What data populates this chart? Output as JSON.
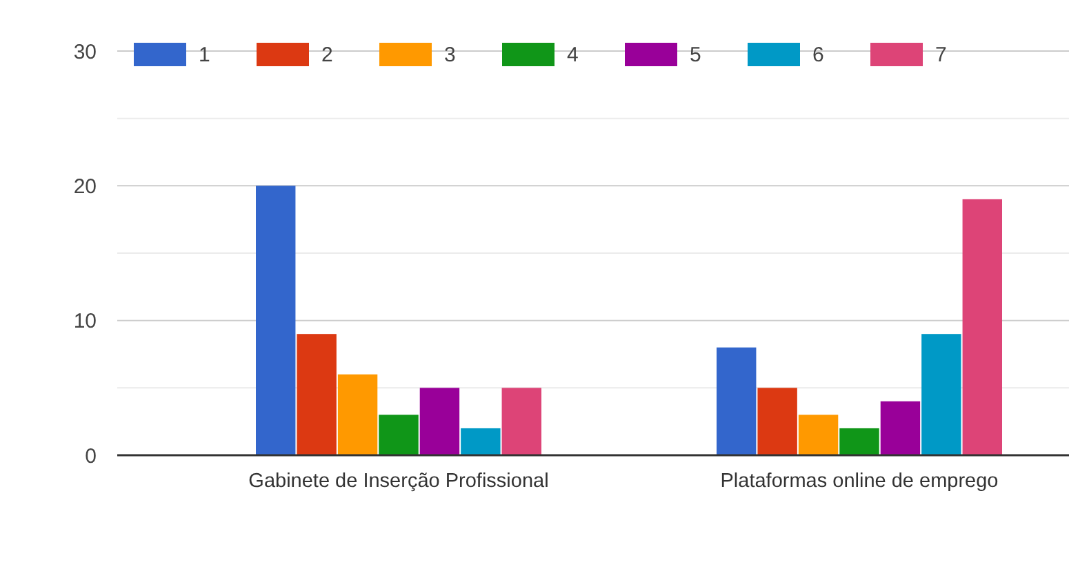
{
  "chart_data": {
    "type": "bar",
    "categories": [
      "Gabinete de Inserção Profissional",
      "Plataformas online de emprego"
    ],
    "series": [
      {
        "name": "1",
        "color": "#3366cc",
        "values": [
          20,
          8
        ]
      },
      {
        "name": "2",
        "color": "#dc3912",
        "values": [
          9,
          5
        ]
      },
      {
        "name": "3",
        "color": "#ff9900",
        "values": [
          6,
          3
        ]
      },
      {
        "name": "4",
        "color": "#109618",
        "values": [
          3,
          2
        ]
      },
      {
        "name": "5",
        "color": "#990099",
        "values": [
          5,
          4
        ]
      },
      {
        "name": "6",
        "color": "#0099c6",
        "values": [
          2,
          9
        ]
      },
      {
        "name": "7",
        "color": "#dd4477",
        "values": [
          5,
          19
        ]
      }
    ],
    "ylim": [
      0,
      30
    ],
    "yticks": [
      0,
      {
        "value": 5,
        "label": null
      },
      10,
      {
        "value": 15,
        "label": null
      },
      20,
      {
        "value": 25,
        "label": null
      },
      30
    ],
    "grid": "y",
    "legend": "top left"
  }
}
